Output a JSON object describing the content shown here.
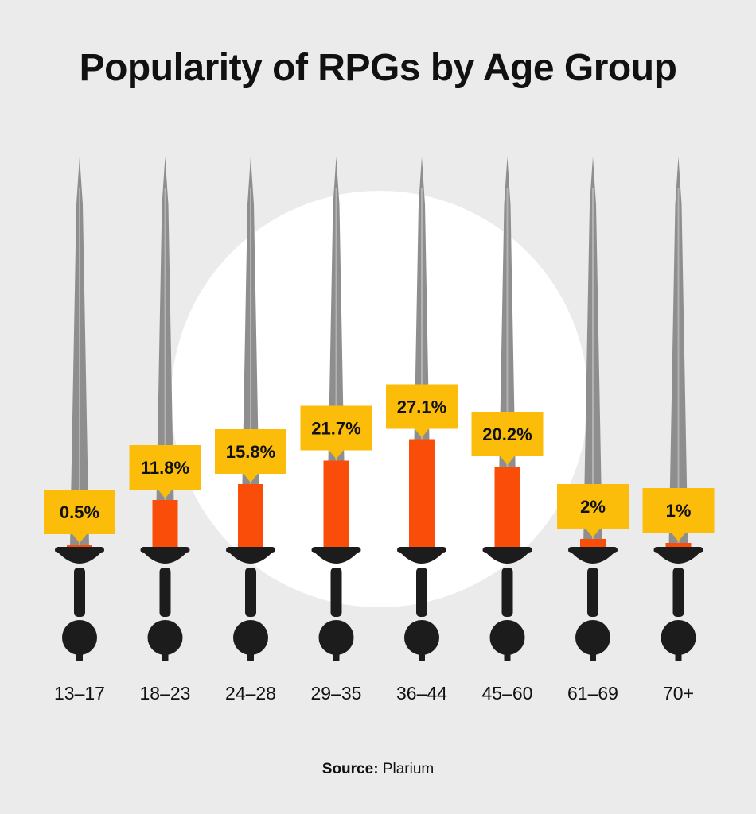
{
  "title": "Popularity of RPGs by Age Group",
  "source": {
    "label": "Source:",
    "name": "Plarium"
  },
  "colors": {
    "background": "#ebebeb",
    "label_box": "#fbbc0a",
    "fill": "#fb4d0a",
    "blade": "#8e8e8e",
    "hilt": "#1c1c1c"
  },
  "chart_data": {
    "type": "bar",
    "categories": [
      "13–17",
      "18–23",
      "24–28",
      "29–35",
      "36–44",
      "45–60",
      "61–69",
      "70+"
    ],
    "values": [
      0.5,
      11.8,
      15.8,
      21.7,
      27.1,
      20.2,
      2,
      1
    ],
    "value_labels": [
      "0.5%",
      "11.8%",
      "15.8%",
      "21.7%",
      "27.1%",
      "20.2%",
      "2%",
      "1%"
    ],
    "unit": "%",
    "title": "Popularity of RPGs by Age Group",
    "xlabel": "",
    "ylabel": "",
    "ylim": [
      0,
      100
    ],
    "grid": false,
    "legend": "none"
  }
}
